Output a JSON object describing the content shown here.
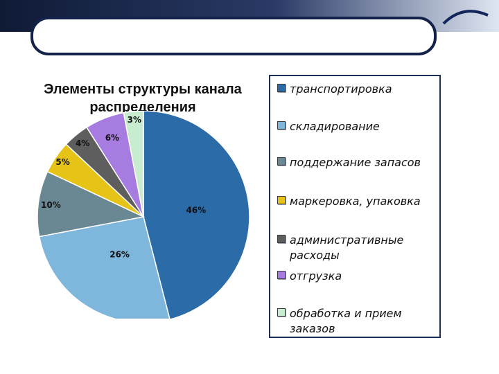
{
  "chart_data": {
    "type": "pie",
    "title": "Элементы структуры канала распределения",
    "categories": [
      "транспортировка",
      "складирование",
      "поддержание запасов",
      "маркеровка, упаковка",
      "административные расходы",
      "отгрузка",
      "обработка и прием заказов"
    ],
    "values": [
      46,
      26,
      10,
      5,
      4,
      6,
      3
    ],
    "labels": [
      "46%",
      "26%",
      "10%",
      "5%",
      "4%",
      "6%",
      "3%"
    ],
    "colors": [
      "#2b6ba8",
      "#7fb6dc",
      "#6a8893",
      "#e6c317",
      "#5e5e5e",
      "#a77ce0",
      "#c8ecd0"
    ],
    "legend_position": "right"
  },
  "colors": {
    "header_bar": "#1a2c54",
    "legend_border": "#1d2f57"
  }
}
